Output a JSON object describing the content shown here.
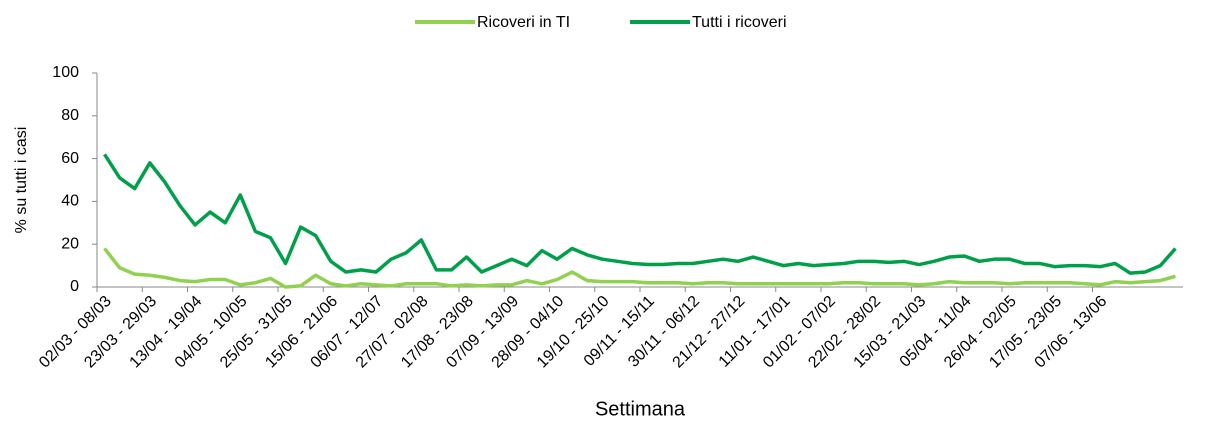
{
  "chart_data": {
    "type": "line",
    "y_label": "% su tutti i casi",
    "x_label": "Settimana",
    "categories": [
      "02/03 - 08/03",
      null,
      null,
      "23/03 - 29/03",
      null,
      null,
      "13/04 - 19/04",
      null,
      null,
      "04/05 - 10/05",
      null,
      null,
      "25/05 - 31/05",
      null,
      null,
      "15/06 - 21/06",
      null,
      null,
      "06/07 - 12/07",
      null,
      null,
      "27/07 - 02/08",
      null,
      null,
      "17/08 - 23/08",
      null,
      null,
      "07/09 - 13/09",
      null,
      null,
      "28/09 - 04/10",
      null,
      null,
      "19/10 - 25/10",
      null,
      null,
      "09/11 - 15/11",
      null,
      null,
      "30/11 - 06/12",
      null,
      null,
      "21/12 - 27/12",
      null,
      null,
      "11/01 - 17/01",
      null,
      null,
      "01/02 - 07/02",
      null,
      null,
      "22/02 - 28/02",
      null,
      null,
      "15/03 - 21/03",
      null,
      null,
      "05/04 - 11/04",
      null,
      null,
      "26/04 - 02/05",
      null,
      null,
      "17/05 - 23/05",
      null,
      null,
      "07/06 - 13/06",
      null,
      null,
      null,
      null,
      null
    ],
    "series": [
      {
        "name": "Ricoveri in TI",
        "color": "#92d050",
        "values": [
          18,
          9,
          6,
          5.5,
          4.5,
          3,
          2.5,
          3.5,
          3.5,
          1,
          2,
          4,
          0,
          0.5,
          5.5,
          1.5,
          0.5,
          1.5,
          1,
          0.5,
          1.5,
          1.5,
          1.5,
          0.5,
          1,
          0.5,
          1,
          1,
          3,
          1.5,
          3.5,
          7,
          3,
          2.5,
          2.5,
          2.5,
          2,
          2,
          2,
          1.5,
          2,
          2,
          1.5,
          1.5,
          1.5,
          1.5,
          1.5,
          1.5,
          1.5,
          2,
          2,
          1.5,
          1.5,
          1.5,
          1,
          1.5,
          2.5,
          2,
          2,
          2,
          1.5,
          2,
          2,
          2,
          2,
          1.5,
          1,
          2.5,
          2,
          2.5,
          3,
          5
        ]
      },
      {
        "name": "Tutti i ricoveri",
        "color": "#00a04b",
        "values": [
          62,
          51,
          46,
          58,
          49,
          38,
          29,
          35,
          30,
          43,
          26,
          23,
          11,
          28,
          24,
          12,
          7,
          8,
          7,
          13,
          16,
          22,
          8,
          8,
          14,
          7,
          10,
          13,
          10,
          17,
          13,
          18,
          15,
          13,
          12,
          11,
          10.5,
          10.5,
          11,
          11,
          12,
          13,
          12,
          14,
          12,
          10,
          11,
          10,
          10.5,
          11,
          12,
          12,
          11.5,
          12,
          10.5,
          12,
          14,
          14.5,
          12,
          13,
          13,
          11,
          11,
          9.5,
          10,
          10,
          9.5,
          11,
          6.5,
          7,
          10,
          18
        ]
      }
    ],
    "ylim": [
      0,
      100
    ],
    "yticks": [
      0,
      20,
      40,
      60,
      80,
      100
    ],
    "grid": false,
    "legend": "top"
  }
}
